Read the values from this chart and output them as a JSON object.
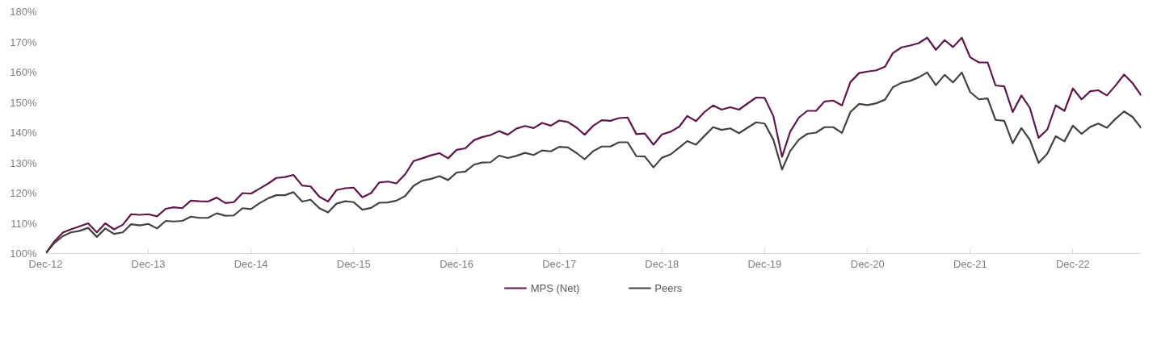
{
  "chart_data": {
    "type": "line",
    "x": [
      "2012-12",
      "2013-01",
      "2013-02",
      "2013-03",
      "2013-04",
      "2013-05",
      "2013-06",
      "2013-07",
      "2013-08",
      "2013-09",
      "2013-10",
      "2013-11",
      "2013-12",
      "2014-01",
      "2014-02",
      "2014-03",
      "2014-04",
      "2014-05",
      "2014-06",
      "2014-07",
      "2014-08",
      "2014-09",
      "2014-10",
      "2014-11",
      "2014-12",
      "2015-01",
      "2015-02",
      "2015-03",
      "2015-04",
      "2015-05",
      "2015-06",
      "2015-07",
      "2015-08",
      "2015-09",
      "2015-10",
      "2015-11",
      "2015-12",
      "2016-01",
      "2016-02",
      "2016-03",
      "2016-04",
      "2016-05",
      "2016-06",
      "2016-07",
      "2016-08",
      "2016-09",
      "2016-10",
      "2016-11",
      "2016-12",
      "2017-01",
      "2017-02",
      "2017-03",
      "2017-04",
      "2017-05",
      "2017-06",
      "2017-07",
      "2017-08",
      "2017-09",
      "2017-10",
      "2017-11",
      "2017-12",
      "2018-01",
      "2018-02",
      "2018-03",
      "2018-04",
      "2018-05",
      "2018-06",
      "2018-07",
      "2018-08",
      "2018-09",
      "2018-10",
      "2018-11",
      "2018-12",
      "2019-01",
      "2019-02",
      "2019-03",
      "2019-04",
      "2019-05",
      "2019-06",
      "2019-07",
      "2019-08",
      "2019-09",
      "2019-10",
      "2019-11",
      "2019-12",
      "2020-01",
      "2020-02",
      "2020-03",
      "2020-04",
      "2020-05",
      "2020-06",
      "2020-07",
      "2020-08",
      "2020-09",
      "2020-10",
      "2020-11",
      "2020-12",
      "2021-01",
      "2021-02",
      "2021-03",
      "2021-04",
      "2021-05",
      "2021-06",
      "2021-07",
      "2021-08",
      "2021-09",
      "2021-10",
      "2021-11",
      "2021-12",
      "2022-01",
      "2022-02",
      "2022-03",
      "2022-04",
      "2022-05",
      "2022-06",
      "2022-07",
      "2022-08",
      "2022-09",
      "2022-10",
      "2022-11",
      "2022-12",
      "2023-01",
      "2023-02",
      "2023-03",
      "2023-04",
      "2023-05",
      "2023-06",
      "2023-07",
      "2023-08"
    ],
    "series": [
      {
        "name": "MPS (Net)",
        "color": "#5e1848",
        "values": [
          100,
          104,
          107,
          108,
          109,
          110,
          107,
          110,
          108,
          109.5,
          113,
          112.8,
          113,
          112.3,
          114.8,
          115.3,
          115,
          117.5,
          117.3,
          117.2,
          118.5,
          116.7,
          117,
          120,
          119.8,
          121.5,
          123.2,
          125,
          125.3,
          126,
          122.5,
          122.2,
          118.8,
          117.2,
          121,
          121.6,
          121.8,
          118.6,
          120,
          123.5,
          123.8,
          123.2,
          126.2,
          130.6,
          131.5,
          132.5,
          133.2,
          131.5,
          134.3,
          134.8,
          137.5,
          138.5,
          139.2,
          140.5,
          139.3,
          141.3,
          142.2,
          141.5,
          143.2,
          142.3,
          144,
          143.5,
          141.6,
          139.3,
          142.3,
          144.1,
          143.9,
          144.8,
          145,
          139.5,
          139.7,
          136,
          139.4,
          140.3,
          142,
          145.5,
          143.8,
          146.8,
          149,
          147.6,
          148.4,
          147.6,
          149.6,
          151.6,
          151.5,
          145.5,
          132,
          140.3,
          145,
          147.2,
          147.2,
          150.3,
          150.6,
          149,
          156.7,
          159.7,
          160.2,
          160.6,
          161.8,
          166.3,
          168.2,
          168.8,
          169.6,
          171.4,
          167.4,
          170.6,
          168.3,
          171.4,
          164.9,
          163.2,
          163.2,
          155.6,
          155.3,
          146.8,
          152.3,
          148.2,
          138.3,
          141,
          149,
          147.2,
          154.6,
          151,
          153.7,
          154,
          152.3,
          155.5,
          159.2,
          156.4,
          152.3
        ]
      },
      {
        "name": "Peers",
        "color": "#454142",
        "values": [
          100,
          103.5,
          105.8,
          107,
          107.5,
          108.5,
          105.5,
          108.3,
          106.5,
          107,
          109.7,
          109.3,
          109.8,
          108.3,
          110.8,
          110.6,
          110.8,
          112.2,
          111.8,
          111.8,
          113.3,
          112.5,
          112.6,
          115,
          114.7,
          116.7,
          118.3,
          119.3,
          119.3,
          120.3,
          117.2,
          117.8,
          115,
          113.6,
          116.5,
          117.3,
          117,
          114.5,
          115.1,
          116.8,
          116.9,
          117.5,
          119,
          122.4,
          124.1,
          124.7,
          125.6,
          124.3,
          126.8,
          127.1,
          129.4,
          130.1,
          130.2,
          132.4,
          131.6,
          132.3,
          133.3,
          132.6,
          134.1,
          133.8,
          135.3,
          135.1,
          133.2,
          131.2,
          133.9,
          135.4,
          135.4,
          136.8,
          136.8,
          132.2,
          132.1,
          128.5,
          131.7,
          132.8,
          135.1,
          137.2,
          136,
          138.9,
          141.8,
          140.9,
          141.4,
          139.8,
          141.6,
          143.4,
          143,
          137.7,
          127.8,
          133.9,
          137.7,
          139.6,
          140,
          141.8,
          141.8,
          139.9,
          146.8,
          149.5,
          149.1,
          149.7,
          150.9,
          155,
          156.5,
          157.1,
          158.3,
          159.9,
          155.7,
          159.1,
          156.6,
          159.9,
          153.4,
          151,
          151.3,
          144.2,
          143.9,
          136.5,
          141.5,
          137.6,
          130,
          133,
          138.8,
          137.1,
          142.3,
          139.6,
          141.9,
          143,
          141.6,
          144.5,
          147,
          145.2,
          141.5
        ]
      }
    ],
    "xlim": [
      "2012-12",
      "2023-08"
    ],
    "xticks": [
      {
        "value": "2012-12",
        "label": "Dec-12"
      },
      {
        "value": "2013-12",
        "label": "Dec-13"
      },
      {
        "value": "2014-12",
        "label": "Dec-14"
      },
      {
        "value": "2015-12",
        "label": "Dec-15"
      },
      {
        "value": "2016-12",
        "label": "Dec-16"
      },
      {
        "value": "2017-12",
        "label": "Dec-17"
      },
      {
        "value": "2018-12",
        "label": "Dec-18"
      },
      {
        "value": "2019-12",
        "label": "Dec-19"
      },
      {
        "value": "2020-12",
        "label": "Dec-20"
      },
      {
        "value": "2021-12",
        "label": "Dec-21"
      },
      {
        "value": "2022-12",
        "label": "Dec-22"
      }
    ],
    "ylim": [
      100,
      180
    ],
    "yticks": [
      {
        "value": 100,
        "label": "100%"
      },
      {
        "value": 110,
        "label": "110%"
      },
      {
        "value": 120,
        "label": "120%"
      },
      {
        "value": 130,
        "label": "130%"
      },
      {
        "value": 140,
        "label": "140%"
      },
      {
        "value": 150,
        "label": "150%"
      },
      {
        "value": 160,
        "label": "160%"
      },
      {
        "value": 170,
        "label": "170%"
      },
      {
        "value": 180,
        "label": "180%"
      }
    ],
    "grid": false,
    "legend": "bottom",
    "marker": "none",
    "line_style": "solid"
  }
}
